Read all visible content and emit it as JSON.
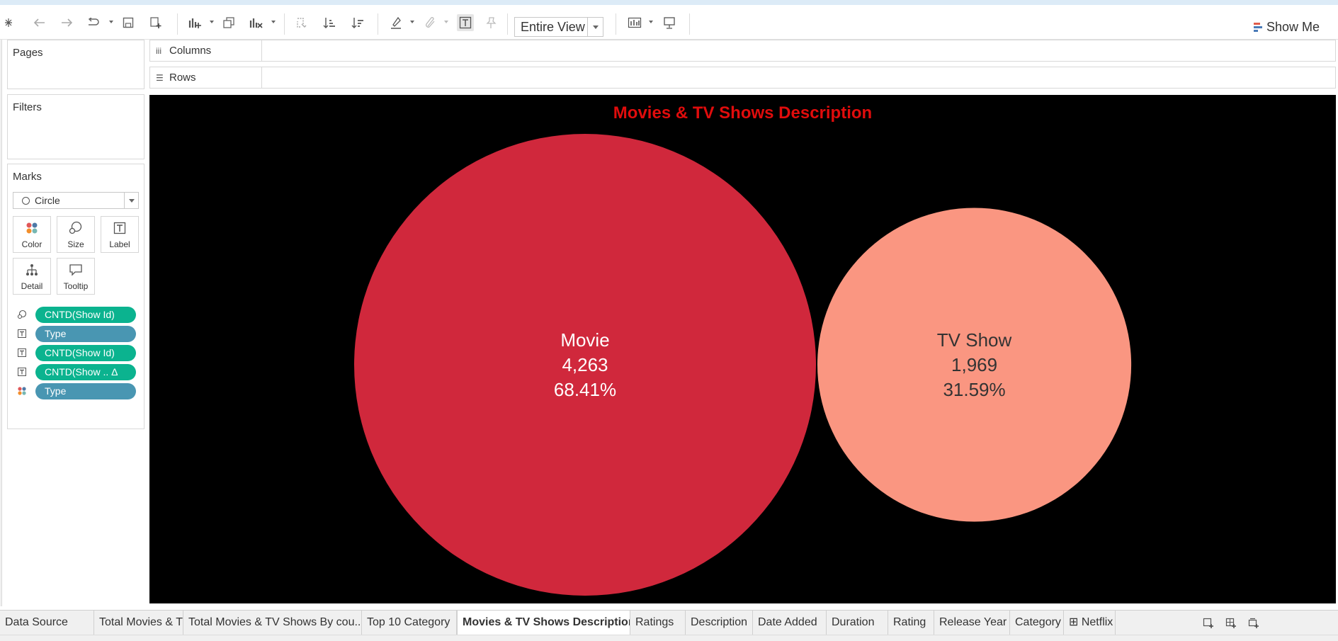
{
  "toolbar": {
    "view_mode": "Entire View",
    "show_me_label": "Show Me",
    "icons": [
      "undo-icon",
      "redo-icon",
      "replay-icon",
      "save-icon",
      "new-data-source-icon",
      "new-worksheet-icon",
      "duplicate-icon",
      "clear-sheet-icon",
      "swap-icon",
      "sort-ascending-icon",
      "sort-descending-icon",
      "highlight-icon",
      "group-icon",
      "label-icon",
      "pin-icon",
      "show-cards-icon",
      "presentation-icon"
    ]
  },
  "left_panel": {
    "pages_title": "Pages",
    "filters_title": "Filters",
    "marks_title": "Marks",
    "mark_type": "Circle",
    "mark_buttons": [
      "Color",
      "Size",
      "Label",
      "Detail",
      "Tooltip"
    ],
    "pills": [
      {
        "label": "CNTD(Show Id)",
        "color": "#0bb38f",
        "icon": "size-icon"
      },
      {
        "label": "Type",
        "color": "#4996b2",
        "icon": "label-icon"
      },
      {
        "label": "CNTD(Show Id)",
        "color": "#0bb38f",
        "icon": "label-icon"
      },
      {
        "label": "CNTD(Show .. Δ",
        "color": "#0bb38f",
        "icon": "label-icon"
      },
      {
        "label": "Type",
        "color": "#4996b2",
        "icon": "color-icon"
      }
    ]
  },
  "shelves": {
    "columns_label": "Columns",
    "rows_label": "Rows"
  },
  "chart_data": {
    "type": "packed-bubble",
    "title": "Movies & TV Shows Description",
    "background": "#000000",
    "title_color": "#e00c0c",
    "categories": [
      "Movie",
      "TV Show"
    ],
    "values": [
      4263,
      1969
    ],
    "value_labels": [
      "4,263",
      "1,969"
    ],
    "percent_labels": [
      "68.41%",
      "31.59%"
    ],
    "colors": [
      "#d0283c",
      "#fa9681"
    ],
    "label_colors": [
      "#ffffff",
      "#333333"
    ]
  },
  "tabs": {
    "items": [
      {
        "label": "Data Source",
        "active": false
      },
      {
        "label": "Total Movies & TV Shows By Yea...",
        "active": false
      },
      {
        "label": "Total Movies & TV Shows By cou...",
        "active": false
      },
      {
        "label": "Top 10 Category",
        "active": false
      },
      {
        "label": "Movies & TV Shows Description",
        "active": true
      },
      {
        "label": "Ratings",
        "active": false
      },
      {
        "label": "Description",
        "active": false
      },
      {
        "label": "Date Added",
        "active": false
      },
      {
        "label": "Duration",
        "active": false
      },
      {
        "label": "Rating",
        "active": false
      },
      {
        "label": "Release Year",
        "active": false
      },
      {
        "label": "Category",
        "active": false
      },
      {
        "label": "⊞ Netflix",
        "active": false
      }
    ]
  }
}
